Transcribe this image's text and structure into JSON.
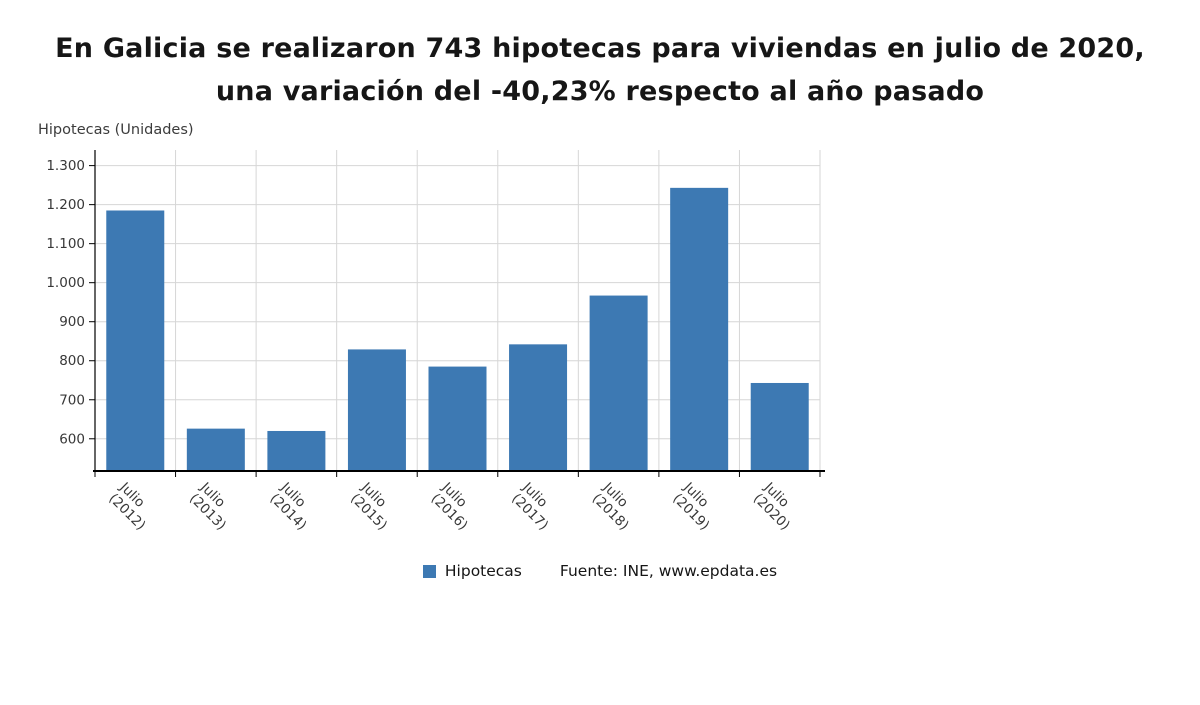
{
  "chart_data": {
    "type": "bar",
    "title": "En Galicia se realizaron 743 hipotecas para viviendas en julio de 2020, una variación del -40,23% respecto al año pasado",
    "ylabel": "Hipotecas (Unidades)",
    "xlabel": "",
    "categories": [
      "Julio (2012)",
      "Julio (2013)",
      "Julio (2014)",
      "Julio (2015)",
      "Julio (2016)",
      "Julio (2017)",
      "Julio (2018)",
      "Julio (2019)",
      "Julio (2020)"
    ],
    "values": [
      1185,
      626,
      620,
      829,
      785,
      842,
      967,
      1243,
      743
    ],
    "series_name": "Hipotecas",
    "yticks": [
      600,
      700,
      800,
      900,
      1000,
      1100,
      1200,
      1300
    ],
    "ytick_labels": [
      "600",
      "700",
      "800",
      "900",
      "1.000",
      "1.100",
      "1.200",
      "1.300"
    ],
    "ylim": [
      520,
      1340
    ],
    "grid": true,
    "legend_label": "Hipotecas",
    "legend_position": "bottom",
    "source": "Fuente: INE, www.epdata.es",
    "bar_color": "#3d79b3",
    "grid_color": "#d6d6d6",
    "axis_color": "#000000",
    "tick_text_color": "#383838"
  }
}
